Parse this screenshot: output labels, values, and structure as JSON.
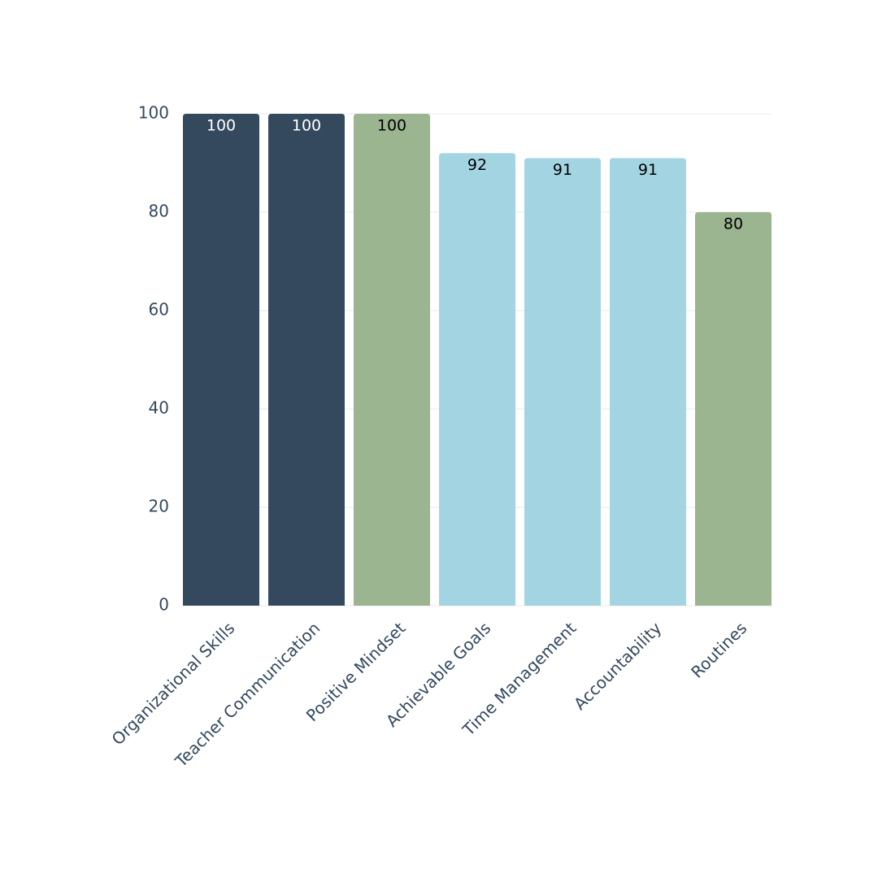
{
  "chart_data": {
    "type": "bar",
    "categories": [
      "Organizational Skills",
      "Teacher Communication",
      "Positive Mindset",
      "Achievable Goals",
      "Time Management",
      "Accountability",
      "Routines"
    ],
    "values": [
      100,
      100,
      100,
      92,
      91,
      91,
      80
    ],
    "colors": [
      "#34495e",
      "#34495e",
      "#9ab58f",
      "#a3d4e2",
      "#a3d4e2",
      "#a3d4e2",
      "#9ab58f"
    ],
    "ylim": [
      0,
      100
    ],
    "yticks": [
      0,
      20,
      40,
      60,
      80,
      100
    ],
    "grid": true
  }
}
